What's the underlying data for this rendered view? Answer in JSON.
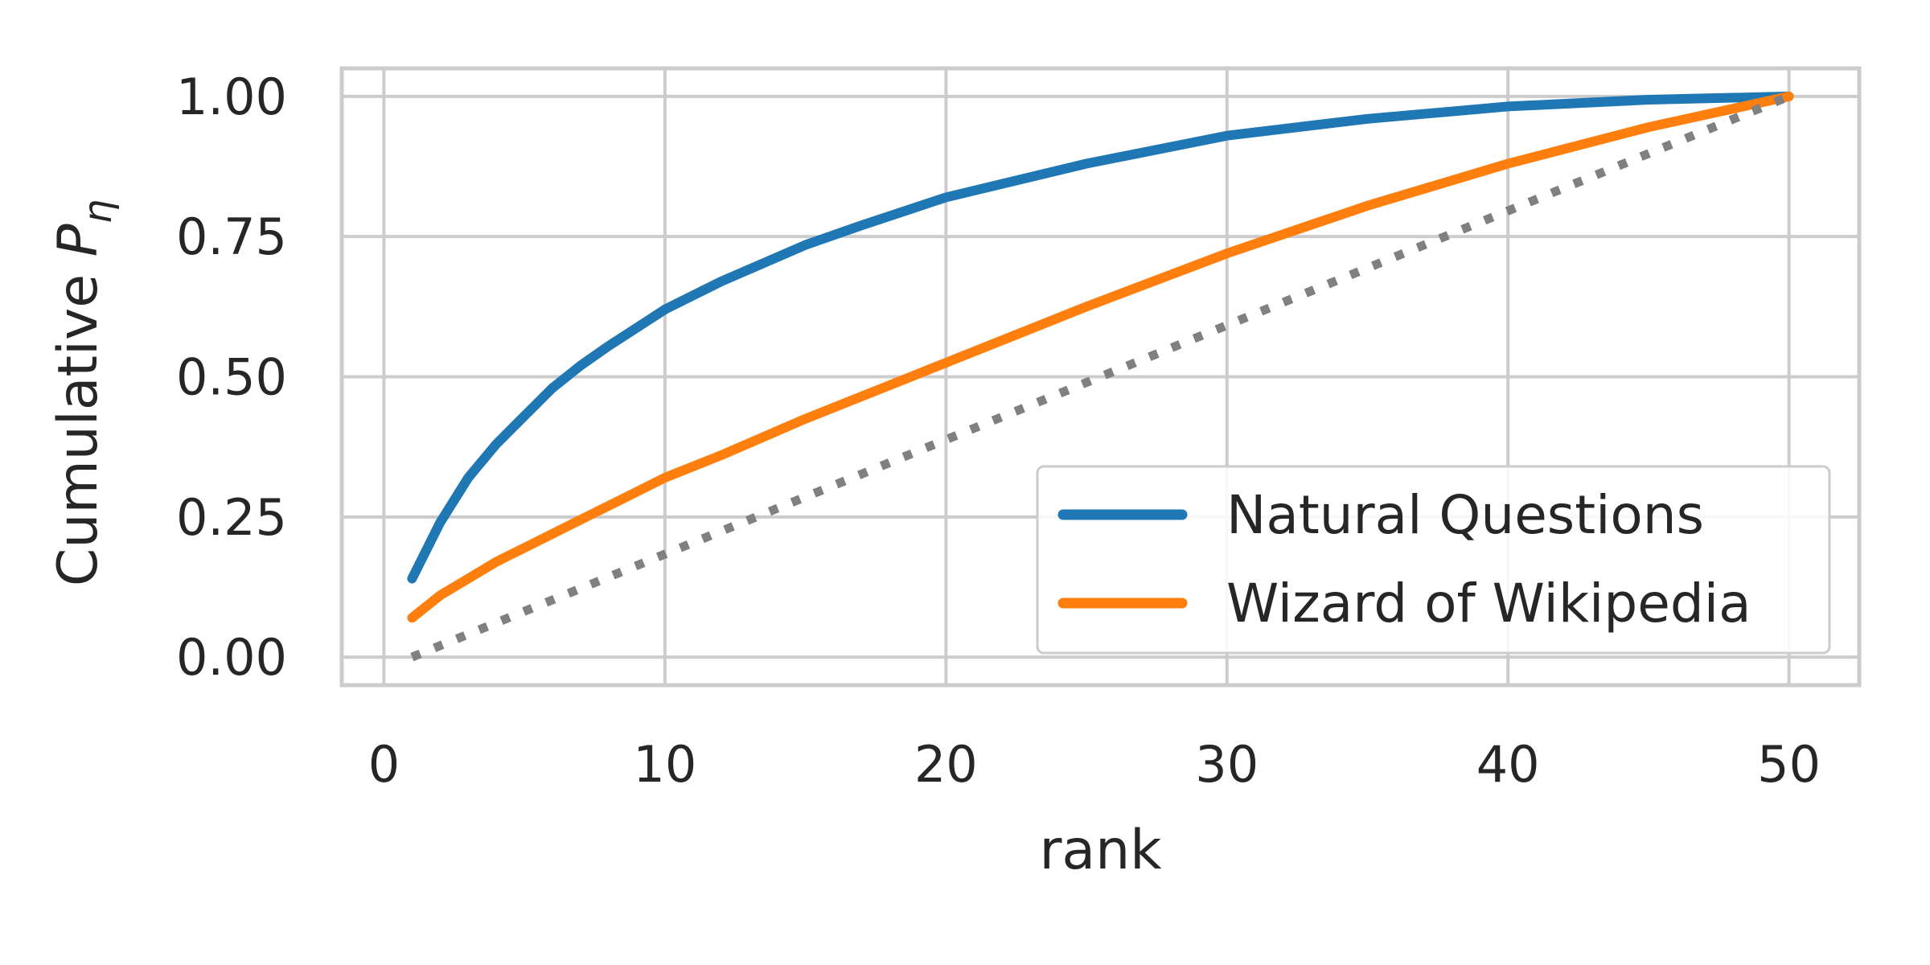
{
  "chart_data": {
    "type": "line",
    "title": "",
    "xlabel": "rank",
    "ylabel_prefix": "Cumulative ",
    "ylabel_symbol": "P",
    "ylabel_subscript": "η",
    "xlim": [
      -1.5,
      52.5
    ],
    "ylim": [
      -0.05,
      1.05
    ],
    "xticks": [
      0,
      10,
      20,
      30,
      40,
      50
    ],
    "yticks": [
      0.0,
      0.25,
      0.5,
      0.75,
      1.0
    ],
    "ytick_labels": [
      "0.00",
      "0.25",
      "0.50",
      "0.75",
      "1.00"
    ],
    "grid": true,
    "legend_position": "lower-right",
    "x": [
      1,
      2,
      3,
      4,
      5,
      6,
      7,
      8,
      10,
      12,
      15,
      17,
      20,
      25,
      30,
      35,
      40,
      45,
      50
    ],
    "series": [
      {
        "name": "Natural Questions",
        "color": "#1f77b4",
        "style": "solid",
        "values": [
          0.14,
          0.24,
          0.32,
          0.38,
          0.43,
          0.48,
          0.52,
          0.555,
          0.62,
          0.67,
          0.735,
          0.77,
          0.82,
          0.88,
          0.93,
          0.96,
          0.982,
          0.994,
          1.0
        ]
      },
      {
        "name": "Wizard of Wikipedia",
        "color": "#ff7f0e",
        "style": "solid",
        "values": [
          0.07,
          0.11,
          0.14,
          0.17,
          0.195,
          0.22,
          0.245,
          0.27,
          0.32,
          0.36,
          0.425,
          0.465,
          0.525,
          0.625,
          0.72,
          0.805,
          0.88,
          0.945,
          1.0
        ]
      },
      {
        "name": "",
        "color": "#808080",
        "style": "dotted",
        "x": [
          1,
          50
        ],
        "values": [
          0.0,
          1.0
        ]
      }
    ]
  }
}
